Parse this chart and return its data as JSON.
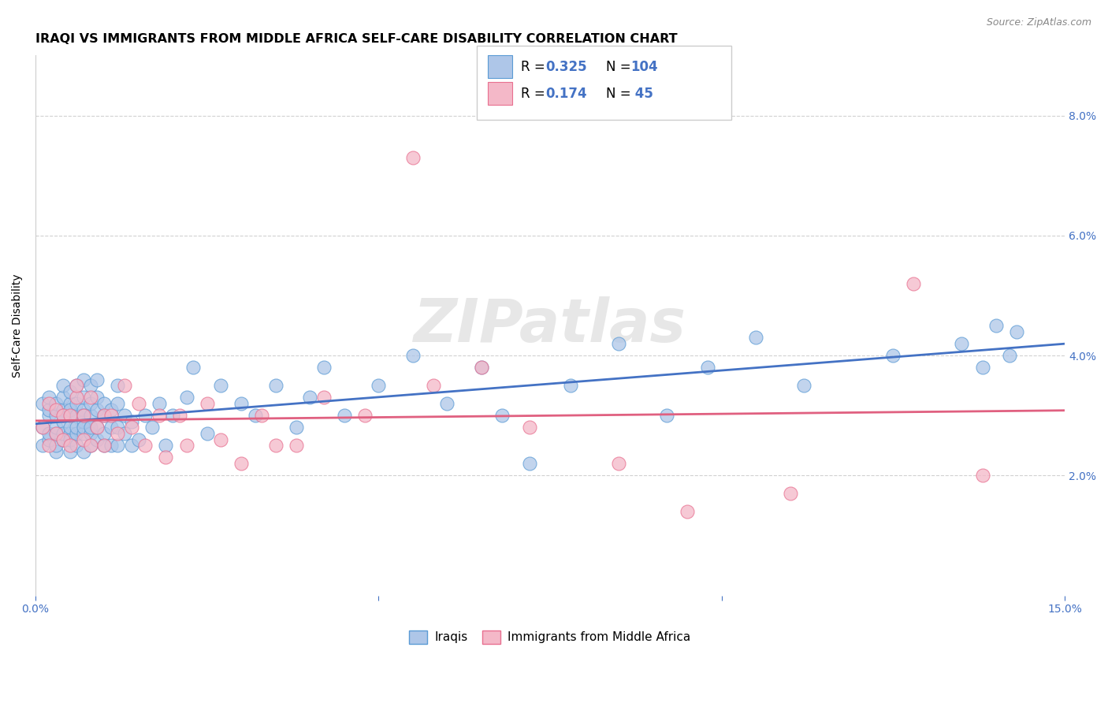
{
  "title": "IRAQI VS IMMIGRANTS FROM MIDDLE AFRICA SELF-CARE DISABILITY CORRELATION CHART",
  "source": "Source: ZipAtlas.com",
  "ylabel": "Self-Care Disability",
  "xlim": [
    0.0,
    0.15
  ],
  "ylim": [
    0.0,
    0.09
  ],
  "x_ticks": [
    0.0,
    0.05,
    0.1,
    0.15
  ],
  "x_tick_labels": [
    "0.0%",
    "",
    "",
    "15.0%"
  ],
  "y_ticks": [
    0.02,
    0.04,
    0.06,
    0.08
  ],
  "y_tick_labels_right": [
    "2.0%",
    "4.0%",
    "6.0%",
    "8.0%"
  ],
  "iraqi_color": "#aec6e8",
  "iraqi_edge_color": "#5b9bd5",
  "immigrants_color": "#f4b8c8",
  "immigrants_edge_color": "#e87090",
  "line_blue": "#4472c4",
  "line_pink": "#e06080",
  "label1": "Iraqis",
  "label2": "Immigrants from Middle Africa",
  "R1": 0.325,
  "N1": 104,
  "R2": 0.174,
  "N2": 45,
  "watermark": "ZIPatlas",
  "background_color": "#ffffff",
  "grid_color": "#cccccc",
  "title_fontsize": 11.5,
  "axis_label_fontsize": 10,
  "tick_fontsize": 10,
  "legend_fontsize": 12,
  "iraqi_x": [
    0.001,
    0.001,
    0.001,
    0.002,
    0.002,
    0.002,
    0.002,
    0.002,
    0.003,
    0.003,
    0.003,
    0.003,
    0.003,
    0.003,
    0.004,
    0.004,
    0.004,
    0.004,
    0.004,
    0.004,
    0.004,
    0.005,
    0.005,
    0.005,
    0.005,
    0.005,
    0.005,
    0.005,
    0.005,
    0.006,
    0.006,
    0.006,
    0.006,
    0.006,
    0.006,
    0.007,
    0.007,
    0.007,
    0.007,
    0.007,
    0.007,
    0.007,
    0.007,
    0.008,
    0.008,
    0.008,
    0.008,
    0.008,
    0.008,
    0.009,
    0.009,
    0.009,
    0.009,
    0.009,
    0.01,
    0.01,
    0.01,
    0.01,
    0.011,
    0.011,
    0.011,
    0.012,
    0.012,
    0.012,
    0.012,
    0.013,
    0.013,
    0.014,
    0.014,
    0.015,
    0.016,
    0.017,
    0.018,
    0.019,
    0.02,
    0.022,
    0.023,
    0.025,
    0.027,
    0.03,
    0.032,
    0.035,
    0.038,
    0.04,
    0.042,
    0.045,
    0.05,
    0.055,
    0.06,
    0.065,
    0.068,
    0.072,
    0.078,
    0.085,
    0.092,
    0.098,
    0.105,
    0.112,
    0.125,
    0.135,
    0.138,
    0.14,
    0.142,
    0.143
  ],
  "iraqi_y": [
    0.028,
    0.032,
    0.025,
    0.026,
    0.03,
    0.027,
    0.031,
    0.033,
    0.024,
    0.027,
    0.03,
    0.032,
    0.028,
    0.025,
    0.026,
    0.029,
    0.031,
    0.027,
    0.033,
    0.035,
    0.03,
    0.024,
    0.027,
    0.03,
    0.032,
    0.026,
    0.028,
    0.031,
    0.034,
    0.025,
    0.027,
    0.03,
    0.032,
    0.035,
    0.028,
    0.024,
    0.027,
    0.029,
    0.031,
    0.033,
    0.036,
    0.028,
    0.03,
    0.025,
    0.027,
    0.03,
    0.032,
    0.035,
    0.028,
    0.026,
    0.028,
    0.031,
    0.033,
    0.036,
    0.025,
    0.027,
    0.03,
    0.032,
    0.025,
    0.028,
    0.031,
    0.025,
    0.028,
    0.032,
    0.035,
    0.027,
    0.03,
    0.025,
    0.029,
    0.026,
    0.03,
    0.028,
    0.032,
    0.025,
    0.03,
    0.033,
    0.038,
    0.027,
    0.035,
    0.032,
    0.03,
    0.035,
    0.028,
    0.033,
    0.038,
    0.03,
    0.035,
    0.04,
    0.032,
    0.038,
    0.03,
    0.022,
    0.035,
    0.042,
    0.03,
    0.038,
    0.043,
    0.035,
    0.04,
    0.042,
    0.038,
    0.045,
    0.04,
    0.044
  ],
  "immigrants_x": [
    0.001,
    0.002,
    0.002,
    0.003,
    0.003,
    0.004,
    0.004,
    0.005,
    0.005,
    0.006,
    0.006,
    0.007,
    0.007,
    0.008,
    0.008,
    0.009,
    0.01,
    0.01,
    0.011,
    0.012,
    0.013,
    0.014,
    0.015,
    0.016,
    0.018,
    0.019,
    0.021,
    0.022,
    0.025,
    0.027,
    0.03,
    0.033,
    0.035,
    0.038,
    0.042,
    0.048,
    0.055,
    0.058,
    0.065,
    0.072,
    0.085,
    0.095,
    0.11,
    0.128,
    0.138
  ],
  "immigrants_y": [
    0.028,
    0.025,
    0.032,
    0.027,
    0.031,
    0.026,
    0.03,
    0.025,
    0.03,
    0.033,
    0.035,
    0.026,
    0.03,
    0.025,
    0.033,
    0.028,
    0.03,
    0.025,
    0.03,
    0.027,
    0.035,
    0.028,
    0.032,
    0.025,
    0.03,
    0.023,
    0.03,
    0.025,
    0.032,
    0.026,
    0.022,
    0.03,
    0.025,
    0.025,
    0.033,
    0.03,
    0.073,
    0.035,
    0.038,
    0.028,
    0.022,
    0.014,
    0.017,
    0.052,
    0.02
  ]
}
